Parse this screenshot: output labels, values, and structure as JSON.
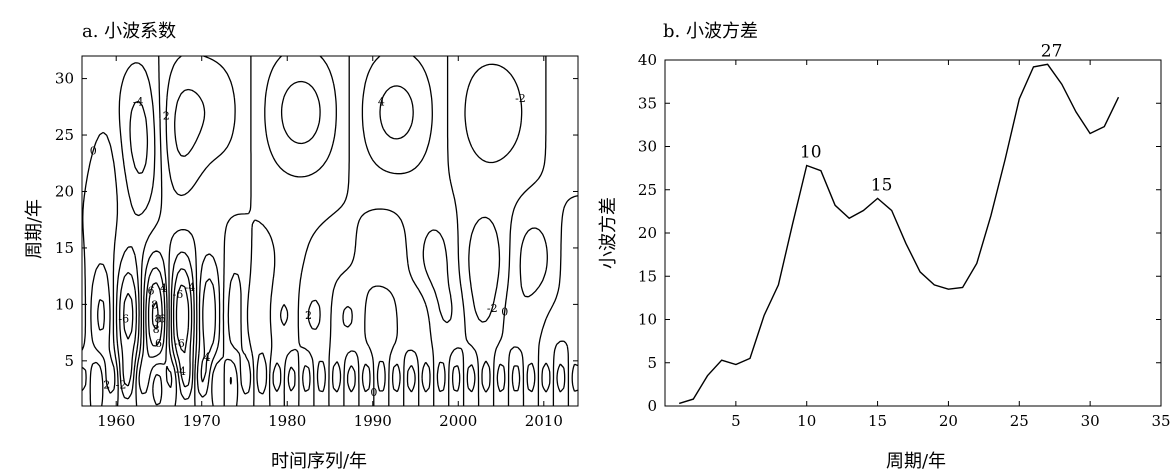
{
  "chart_data": [
    {
      "type": "contour",
      "title": "a. 小波系数",
      "xlabel": "时间序列/年",
      "ylabel": "周期/年",
      "xlim": [
        1956,
        2014
      ],
      "ylim": [
        1,
        32
      ],
      "x_ticks": [
        1960,
        1970,
        1980,
        1990,
        2000,
        2010
      ],
      "y_ticks": [
        5,
        10,
        15,
        20,
        25,
        30
      ],
      "contour_labels": [
        "-8",
        "-6",
        "-4",
        "-2",
        "0",
        "2",
        "4",
        "6",
        "8"
      ],
      "grid": false
    },
    {
      "type": "line",
      "title": "b. 小波方差",
      "xlabel": "周期/年",
      "ylabel": "小波方差",
      "xlim": [
        0,
        35
      ],
      "ylim": [
        0,
        40
      ],
      "x_ticks": [
        5,
        10,
        15,
        20,
        25,
        30,
        35
      ],
      "y_ticks": [
        0,
        5,
        10,
        15,
        20,
        25,
        30,
        35,
        40
      ],
      "x": [
        1,
        2,
        3,
        4,
        5,
        6,
        7,
        8,
        9,
        10,
        11,
        12,
        13,
        14,
        15,
        16,
        17,
        18,
        19,
        20,
        21,
        22,
        23,
        24,
        25,
        26,
        27,
        28,
        29,
        30,
        31,
        32
      ],
      "values": [
        0.3,
        0.8,
        3.5,
        5.3,
        4.8,
        5.5,
        10.5,
        14,
        21,
        27.8,
        27.2,
        23.2,
        21.7,
        22.6,
        24,
        22.6,
        18.8,
        15.5,
        14,
        13.5,
        13.7,
        16.5,
        22,
        28.5,
        35.5,
        39.2,
        39.5,
        37.2,
        34,
        31.5,
        32.3,
        35.7
      ],
      "annotations": [
        {
          "text": "10",
          "x": 10,
          "y": 27.8
        },
        {
          "text": "15",
          "x": 15,
          "y": 24
        },
        {
          "text": "27",
          "x": 27,
          "y": 39.5
        }
      ],
      "grid": false
    }
  ]
}
